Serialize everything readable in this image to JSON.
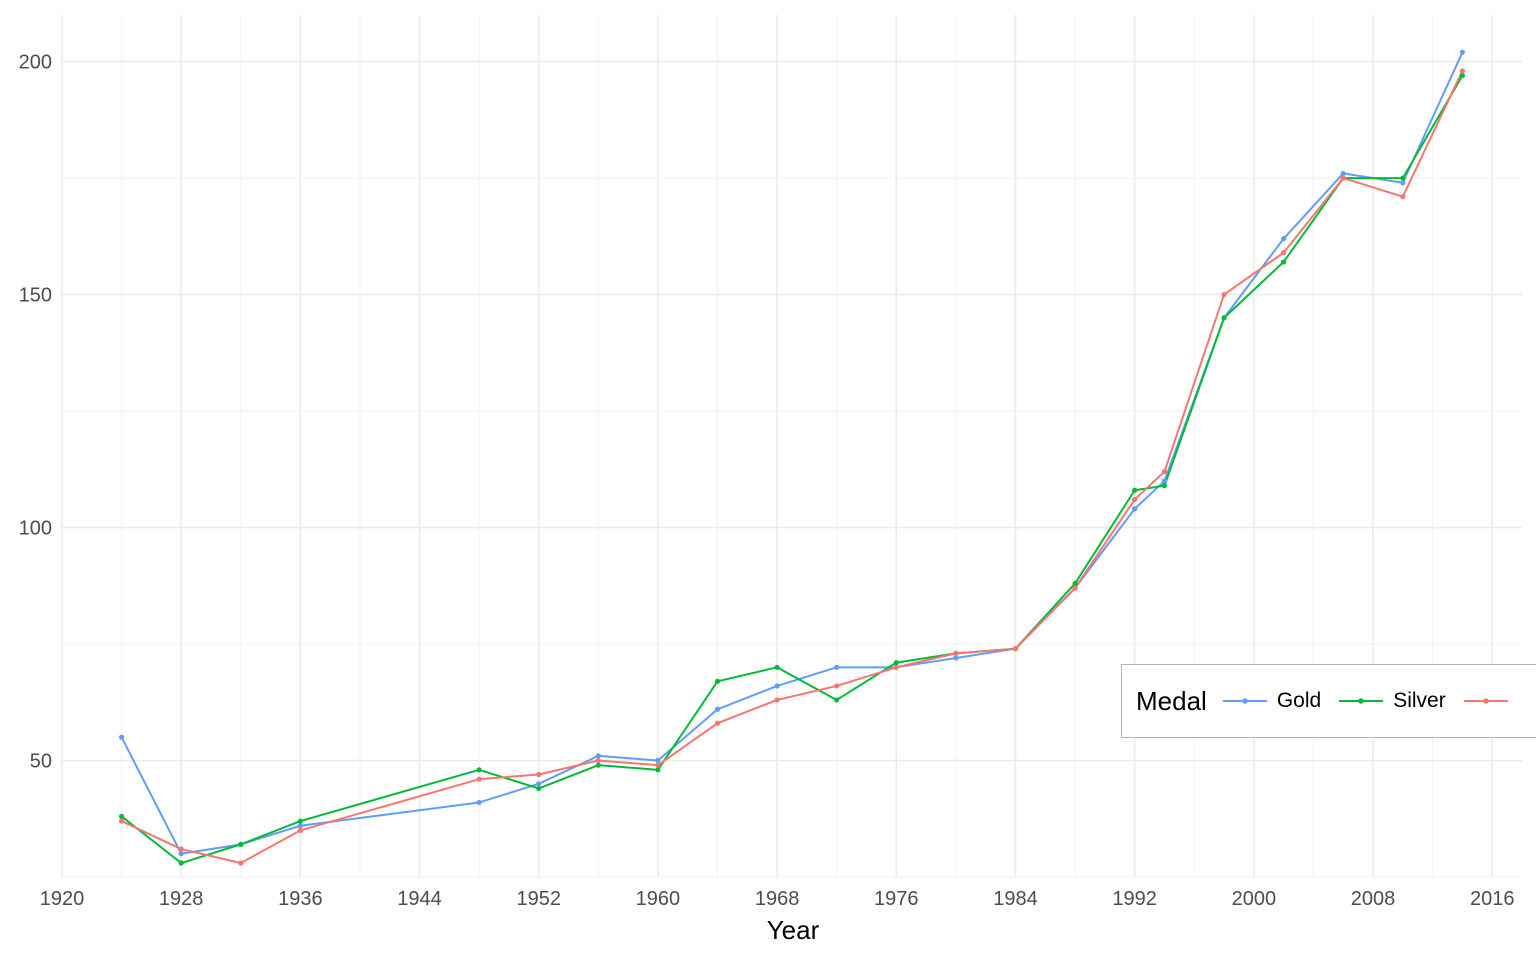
{
  "chart_data": {
    "type": "line",
    "title": "",
    "xlabel": "Year",
    "ylabel": "",
    "xlim": [
      1920,
      2018
    ],
    "ylim": [
      25,
      210
    ],
    "xticks": [
      1920,
      1928,
      1936,
      1944,
      1952,
      1960,
      1968,
      1976,
      1984,
      1992,
      2000,
      2008,
      2016
    ],
    "yticks": [
      50,
      100,
      150,
      200
    ],
    "grid": true,
    "legend": {
      "title": "Medal",
      "position": "right, overlapping plot"
    },
    "x": [
      1924,
      1928,
      1932,
      1936,
      1948,
      1952,
      1956,
      1960,
      1964,
      1968,
      1972,
      1976,
      1980,
      1984,
      1988,
      1992,
      1994,
      1998,
      2002,
      2006,
      2010,
      2014
    ],
    "series": [
      {
        "name": "Gold",
        "color": "#619CFF",
        "values": [
          55,
          30,
          32,
          36,
          41,
          45,
          51,
          50,
          61,
          66,
          70,
          70,
          72,
          74,
          87,
          104,
          110,
          145,
          162,
          176,
          174,
          202
        ]
      },
      {
        "name": "Silver",
        "color": "#00BA38",
        "values": [
          38,
          28,
          32,
          37,
          48,
          44,
          49,
          48,
          67,
          70,
          63,
          71,
          73,
          74,
          88,
          108,
          109,
          145,
          157,
          175,
          175,
          197
        ]
      },
      {
        "name": "",
        "color": "#F8766D",
        "values": [
          37,
          31,
          28,
          35,
          46,
          47,
          50,
          49,
          58,
          63,
          66,
          70,
          73,
          74,
          87,
          106,
          112,
          150,
          159,
          175,
          171,
          198
        ]
      }
    ]
  }
}
